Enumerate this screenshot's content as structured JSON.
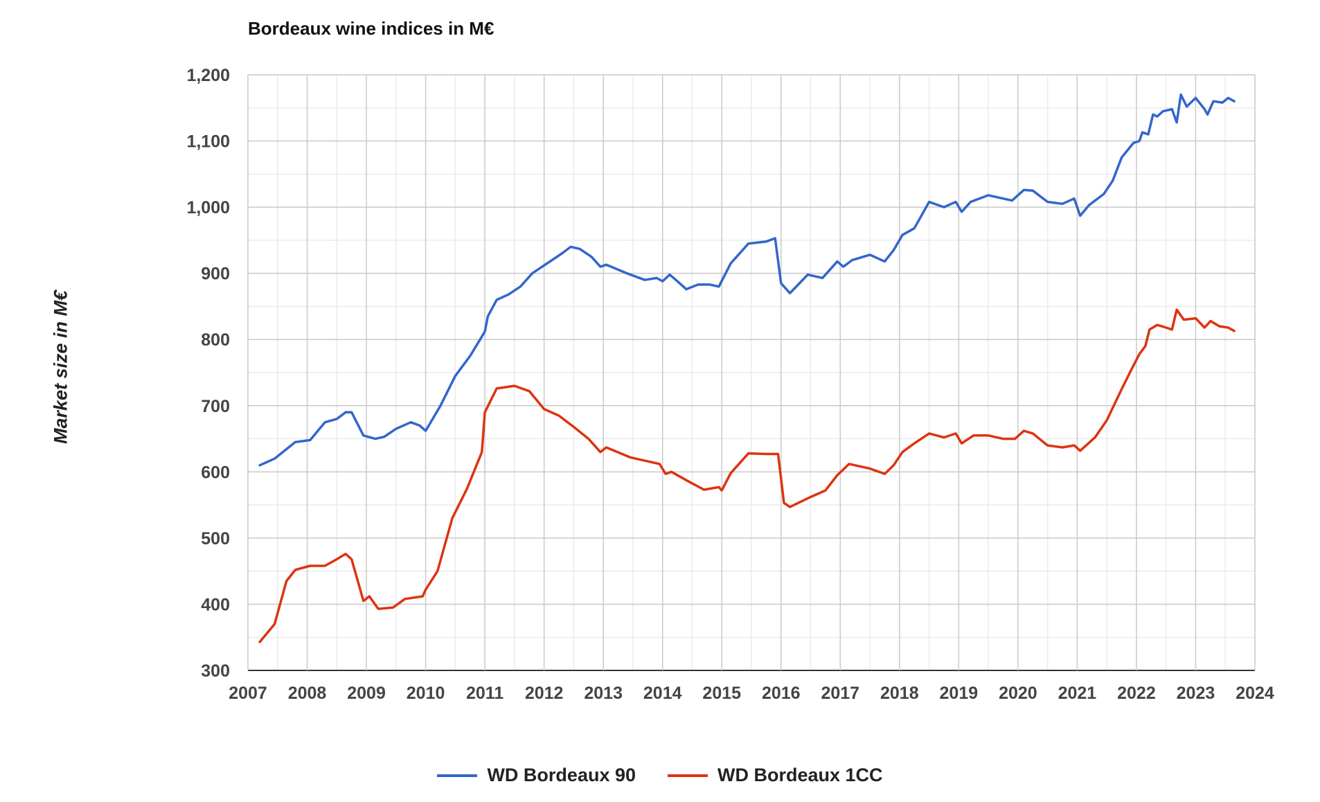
{
  "chart_data": {
    "type": "line",
    "title": "Bordeaux wine indices in M€",
    "xlabel": "",
    "ylabel": "Market size in M€",
    "xlim": [
      2007,
      2024
    ],
    "ylim": [
      300,
      1200
    ],
    "x_ticks": [
      "2007",
      "2008",
      "2009",
      "2010",
      "2011",
      "2012",
      "2013",
      "2014",
      "2015",
      "2016",
      "2017",
      "2018",
      "2019",
      "2020",
      "2021",
      "2022",
      "2023",
      "2024"
    ],
    "y_ticks": [
      "300",
      "400",
      "500",
      "600",
      "700",
      "800",
      "900",
      "1,000",
      "1,100",
      "1,200"
    ],
    "grid": true,
    "legend_position": "bottom",
    "series": [
      {
        "name": "WD Bordeaux 90",
        "color": "#3366cc",
        "points": [
          [
            2007.2,
            610
          ],
          [
            2007.45,
            620
          ],
          [
            2007.8,
            645
          ],
          [
            2008.05,
            648
          ],
          [
            2008.3,
            675
          ],
          [
            2008.5,
            680
          ],
          [
            2008.65,
            690
          ],
          [
            2008.75,
            690
          ],
          [
            2008.95,
            655
          ],
          [
            2009.15,
            650
          ],
          [
            2009.3,
            653
          ],
          [
            2009.5,
            665
          ],
          [
            2009.75,
            675
          ],
          [
            2009.9,
            670
          ],
          [
            2010.0,
            662
          ],
          [
            2010.25,
            700
          ],
          [
            2010.5,
            745
          ],
          [
            2010.75,
            775
          ],
          [
            2011.0,
            812
          ],
          [
            2011.05,
            835
          ],
          [
            2011.2,
            860
          ],
          [
            2011.4,
            868
          ],
          [
            2011.6,
            880
          ],
          [
            2011.8,
            900
          ],
          [
            2012.1,
            918
          ],
          [
            2012.3,
            930
          ],
          [
            2012.45,
            940
          ],
          [
            2012.6,
            937
          ],
          [
            2012.8,
            925
          ],
          [
            2012.95,
            910
          ],
          [
            2013.05,
            913
          ],
          [
            2013.4,
            900
          ],
          [
            2013.7,
            890
          ],
          [
            2013.9,
            893
          ],
          [
            2014.0,
            888
          ],
          [
            2014.12,
            898
          ],
          [
            2014.25,
            888
          ],
          [
            2014.4,
            876
          ],
          [
            2014.6,
            883
          ],
          [
            2014.8,
            883
          ],
          [
            2014.95,
            880
          ],
          [
            2015.15,
            915
          ],
          [
            2015.45,
            945
          ],
          [
            2015.75,
            948
          ],
          [
            2015.9,
            953
          ],
          [
            2016.0,
            885
          ],
          [
            2016.15,
            870
          ],
          [
            2016.45,
            898
          ],
          [
            2016.7,
            893
          ],
          [
            2016.95,
            918
          ],
          [
            2017.05,
            910
          ],
          [
            2017.2,
            920
          ],
          [
            2017.5,
            928
          ],
          [
            2017.75,
            918
          ],
          [
            2017.9,
            935
          ],
          [
            2018.05,
            958
          ],
          [
            2018.25,
            968
          ],
          [
            2018.5,
            1008
          ],
          [
            2018.75,
            1000
          ],
          [
            2018.95,
            1008
          ],
          [
            2019.05,
            993
          ],
          [
            2019.2,
            1008
          ],
          [
            2019.5,
            1018
          ],
          [
            2019.75,
            1013
          ],
          [
            2019.9,
            1010
          ],
          [
            2020.1,
            1026
          ],
          [
            2020.25,
            1025
          ],
          [
            2020.5,
            1008
          ],
          [
            2020.75,
            1005
          ],
          [
            2020.95,
            1013
          ],
          [
            2021.05,
            987
          ],
          [
            2021.2,
            1003
          ],
          [
            2021.45,
            1020
          ],
          [
            2021.6,
            1040
          ],
          [
            2021.75,
            1075
          ],
          [
            2021.95,
            1097
          ],
          [
            2022.05,
            1100
          ],
          [
            2022.1,
            1113
          ],
          [
            2022.2,
            1110
          ],
          [
            2022.28,
            1140
          ],
          [
            2022.35,
            1137
          ],
          [
            2022.45,
            1145
          ],
          [
            2022.6,
            1148
          ],
          [
            2022.68,
            1128
          ],
          [
            2022.75,
            1170
          ],
          [
            2022.85,
            1152
          ],
          [
            2023.0,
            1165
          ],
          [
            2023.15,
            1148
          ],
          [
            2023.2,
            1140
          ],
          [
            2023.3,
            1160
          ],
          [
            2023.45,
            1158
          ],
          [
            2023.55,
            1165
          ],
          [
            2023.65,
            1160
          ]
        ]
      },
      {
        "name": "WD Bordeaux 1CC",
        "color": "#dd3311",
        "points": [
          [
            2007.2,
            343
          ],
          [
            2007.45,
            370
          ],
          [
            2007.65,
            435
          ],
          [
            2007.8,
            452
          ],
          [
            2008.05,
            458
          ],
          [
            2008.3,
            458
          ],
          [
            2008.5,
            468
          ],
          [
            2008.65,
            476
          ],
          [
            2008.75,
            468
          ],
          [
            2008.95,
            405
          ],
          [
            2009.05,
            412
          ],
          [
            2009.2,
            393
          ],
          [
            2009.45,
            395
          ],
          [
            2009.65,
            408
          ],
          [
            2009.95,
            412
          ],
          [
            2010.0,
            422
          ],
          [
            2010.2,
            450
          ],
          [
            2010.45,
            530
          ],
          [
            2010.7,
            575
          ],
          [
            2010.95,
            630
          ],
          [
            2011.0,
            690
          ],
          [
            2011.2,
            726
          ],
          [
            2011.5,
            730
          ],
          [
            2011.75,
            722
          ],
          [
            2012.0,
            695
          ],
          [
            2012.25,
            685
          ],
          [
            2012.5,
            668
          ],
          [
            2012.75,
            650
          ],
          [
            2012.95,
            630
          ],
          [
            2013.05,
            637
          ],
          [
            2013.45,
            622
          ],
          [
            2013.95,
            612
          ],
          [
            2014.05,
            597
          ],
          [
            2014.15,
            600
          ],
          [
            2014.45,
            585
          ],
          [
            2014.7,
            573
          ],
          [
            2014.95,
            577
          ],
          [
            2015.0,
            572
          ],
          [
            2015.15,
            598
          ],
          [
            2015.45,
            628
          ],
          [
            2015.75,
            627
          ],
          [
            2015.95,
            627
          ],
          [
            2016.05,
            553
          ],
          [
            2016.15,
            547
          ],
          [
            2016.5,
            562
          ],
          [
            2016.75,
            572
          ],
          [
            2016.95,
            595
          ],
          [
            2017.15,
            612
          ],
          [
            2017.5,
            605
          ],
          [
            2017.75,
            597
          ],
          [
            2017.9,
            610
          ],
          [
            2018.05,
            630
          ],
          [
            2018.25,
            643
          ],
          [
            2018.5,
            658
          ],
          [
            2018.75,
            652
          ],
          [
            2018.95,
            658
          ],
          [
            2019.05,
            643
          ],
          [
            2019.25,
            655
          ],
          [
            2019.5,
            655
          ],
          [
            2019.75,
            650
          ],
          [
            2019.95,
            650
          ],
          [
            2020.1,
            662
          ],
          [
            2020.25,
            658
          ],
          [
            2020.5,
            640
          ],
          [
            2020.75,
            637
          ],
          [
            2020.95,
            640
          ],
          [
            2021.05,
            632
          ],
          [
            2021.3,
            652
          ],
          [
            2021.5,
            678
          ],
          [
            2021.75,
            725
          ],
          [
            2021.9,
            752
          ],
          [
            2022.05,
            778
          ],
          [
            2022.15,
            790
          ],
          [
            2022.22,
            815
          ],
          [
            2022.35,
            822
          ],
          [
            2022.5,
            818
          ],
          [
            2022.6,
            815
          ],
          [
            2022.68,
            845
          ],
          [
            2022.8,
            830
          ],
          [
            2023.0,
            832
          ],
          [
            2023.15,
            818
          ],
          [
            2023.25,
            828
          ],
          [
            2023.4,
            820
          ],
          [
            2023.55,
            818
          ],
          [
            2023.65,
            813
          ]
        ]
      }
    ]
  }
}
